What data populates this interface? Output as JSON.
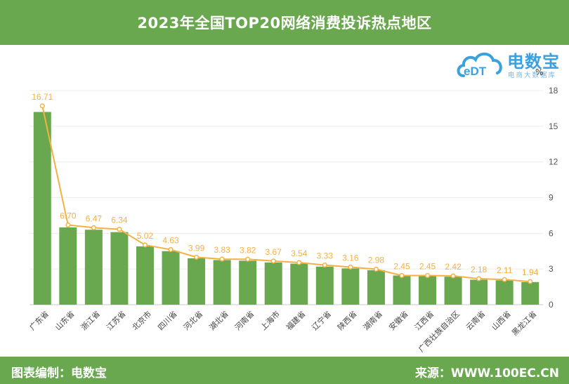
{
  "header": {
    "title": "2023年全国TOP20网络消费投诉热点地区"
  },
  "logo": {
    "name": "电数宝",
    "subtitle": "电商大数据库",
    "badge": "eDT"
  },
  "unit_label": "%",
  "footer": {
    "left_text": "图表编制：电数宝",
    "right_text": "来源：WWW.100EC.CN"
  },
  "colors": {
    "bar": "#6aa84f",
    "line": "#f5b041",
    "header_bg": "#6aa84f",
    "logo": "#3aa0e0"
  },
  "chart_data": {
    "type": "bar",
    "categories": [
      "广东省",
      "山东省",
      "浙江省",
      "江苏省",
      "北京市",
      "四川省",
      "河北省",
      "湖北省",
      "河南省",
      "上海市",
      "福建省",
      "辽宁省",
      "陕西省",
      "湖南省",
      "安徽省",
      "江西省",
      "广西壮族自治区",
      "云南省",
      "山西省",
      "黑龙江省"
    ],
    "series": [
      {
        "type": "bar",
        "values": [
          16.2,
          6.5,
          6.3,
          6.1,
          4.9,
          4.5,
          3.9,
          3.75,
          3.7,
          3.55,
          3.45,
          3.2,
          3.05,
          2.9,
          2.45,
          2.4,
          2.35,
          2.1,
          2.05,
          1.9
        ]
      },
      {
        "type": "line",
        "values": [
          16.71,
          6.7,
          6.47,
          6.34,
          5.02,
          4.63,
          3.99,
          3.83,
          3.82,
          3.67,
          3.54,
          3.33,
          3.16,
          2.98,
          2.45,
          2.45,
          2.42,
          2.18,
          2.11,
          1.94
        ]
      }
    ],
    "data_labels": [
      "16.71",
      "6.70",
      "6.47",
      "6.34",
      "5.02",
      "4.63",
      "3.99",
      "3.83",
      "3.82",
      "3.67",
      "3.54",
      "3.33",
      "3.16",
      "2.98",
      "2.45",
      "2.45",
      "2.42",
      "2.18",
      "2.11",
      "1.94"
    ],
    "y_axis": {
      "position": "right",
      "ticks": [
        0,
        3,
        6,
        9,
        12,
        15,
        18
      ],
      "range": [
        0,
        18
      ]
    },
    "grid": true,
    "legend": "none"
  }
}
